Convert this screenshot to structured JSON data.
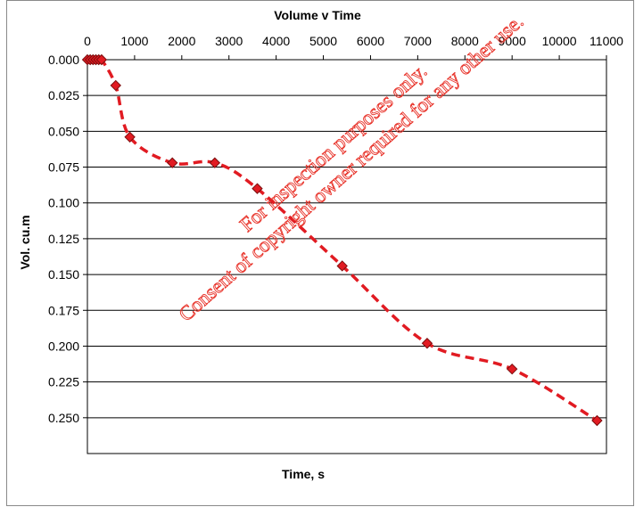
{
  "chart_data": {
    "type": "scatter",
    "title": "Volume v Time",
    "xlabel": "Time, s",
    "ylabel": "Vol. cu.m",
    "xlim": [
      0,
      11000
    ],
    "ylim": [
      0.0,
      0.275
    ],
    "y_inverted": true,
    "x_axis_position": "top",
    "grid": "horizontal",
    "legend": "none",
    "x_ticks": [
      0,
      1000,
      2000,
      3000,
      4000,
      5000,
      6000,
      7000,
      8000,
      9000,
      10000,
      11000
    ],
    "x_tick_labels": [
      "0",
      "1000",
      "2000",
      "3000",
      "4000",
      "5000",
      "6000",
      "7000",
      "8000",
      "9000",
      "10000",
      "11000"
    ],
    "y_ticks": [
      0.0,
      0.025,
      0.05,
      0.075,
      0.1,
      0.125,
      0.15,
      0.175,
      0.2,
      0.225,
      0.25
    ],
    "y_tick_labels": [
      "0.000",
      "0.025",
      "0.050",
      "0.075",
      "0.100",
      "0.125",
      "0.150",
      "0.175",
      "0.200",
      "0.225",
      "0.250"
    ],
    "series": [
      {
        "x": [
          0,
          60,
          120,
          180,
          240,
          300,
          600,
          900,
          1800,
          2700,
          3600,
          5400,
          7200,
          9000,
          10800
        ],
        "y": [
          0.0,
          0.0,
          0.0,
          0.0,
          0.0,
          0.0,
          0.018,
          0.054,
          0.072,
          0.072,
          0.09,
          0.144,
          0.198,
          0.216,
          0.252
        ],
        "marker": "diamond",
        "line_style": "dashed smooth"
      }
    ]
  },
  "colors": {
    "series": "#e11b22",
    "marker_fill": "#e11b22",
    "marker_edge": "#7a0d0d",
    "grid": "#000000",
    "watermark": "#e8332a"
  },
  "watermark": {
    "line1": "For inspection purposes only.",
    "line2": "Consent of copyright owner required for any other use."
  }
}
